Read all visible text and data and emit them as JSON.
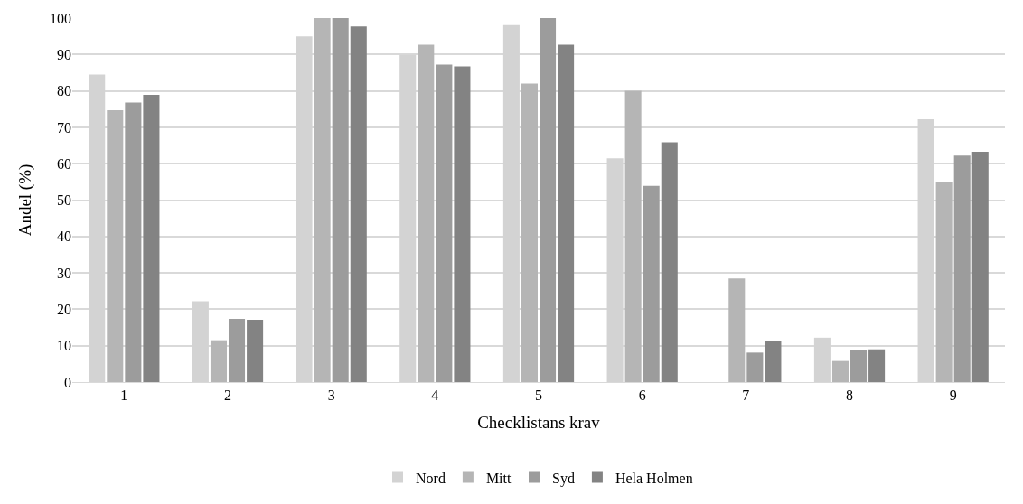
{
  "chart_data": {
    "type": "bar",
    "xlabel": "Checklistans krav",
    "ylabel": "Andel (%)",
    "categories": [
      "1",
      "2",
      "3",
      "4",
      "5",
      "6",
      "7",
      "8",
      "9"
    ],
    "series": [
      {
        "name": "Nord",
        "color": "#d3d3d3",
        "values": [
          84.5,
          22.2,
          95,
          89.9,
          98.1,
          61.5,
          0,
          12.2,
          72.2
        ]
      },
      {
        "name": "Mitt",
        "color": "#b5b5b5",
        "values": [
          74.7,
          11.5,
          100,
          92.7,
          82,
          80,
          28.5,
          5.8,
          55.1
        ]
      },
      {
        "name": "Syd",
        "color": "#9c9c9c",
        "values": [
          76.8,
          17.4,
          100,
          87.2,
          100,
          53.9,
          8.1,
          8.7,
          62.2
        ]
      },
      {
        "name": "Hela Holmen",
        "color": "#838383",
        "values": [
          78.9,
          17.1,
          97.7,
          86.7,
          92.7,
          65.9,
          11.3,
          9.0,
          63.3
        ]
      }
    ],
    "ylim": [
      0,
      100
    ],
    "yticks": [
      0,
      10,
      20,
      30,
      40,
      50,
      60,
      70,
      80,
      90,
      100
    ],
    "grid": "y",
    "legend": "bottom"
  }
}
